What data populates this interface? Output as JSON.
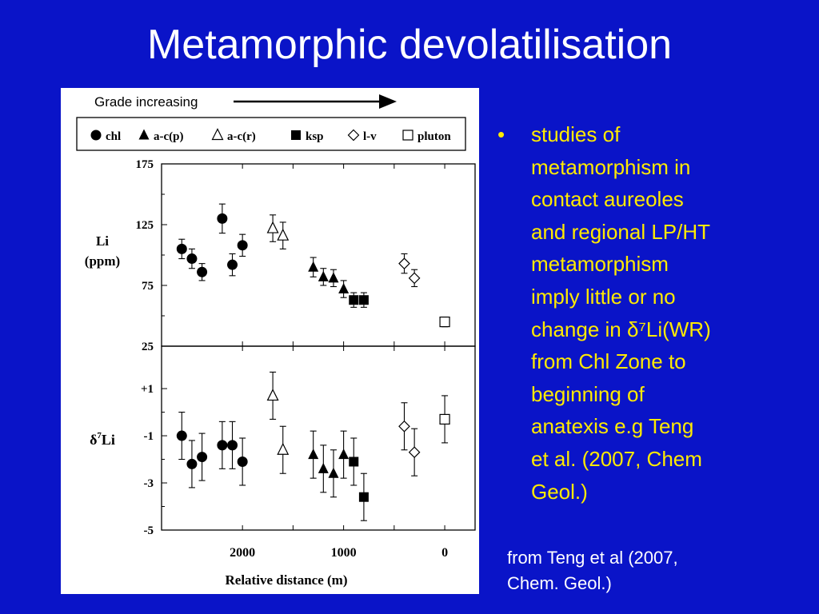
{
  "slide": {
    "title": "Metamorphic devolatilisation",
    "bullet_marker": "•",
    "bullet_text": "studies  of\nmetamorphism in\ncontact aureoles\nand regional LP/HT\nmetamorphism\nimply little  or  no\nchange  in δ⁷Li(WR)\nfrom Chl Zone to\nbeginning  of\nanatexis e.g Teng\net al. (2007, Chem\nGeol.)",
    "source": "from Teng et al (2007,\nChem. Geol.)"
  },
  "colors": {
    "background": "#0a14c8",
    "title": "#ffffff",
    "bullet": "#ffea00",
    "source": "#ffffff"
  },
  "chart_data": {
    "type": "scatter",
    "annotation": "Grade increasing",
    "arrow_direction": "right",
    "legend": [
      {
        "label": "chl",
        "marker": "filled-circle"
      },
      {
        "label": "a-c(p)",
        "marker": "filled-triangle"
      },
      {
        "label": "a-c(r)",
        "marker": "open-triangle"
      },
      {
        "label": "ksp",
        "marker": "filled-square"
      },
      {
        "label": "l-v",
        "marker": "open-diamond"
      },
      {
        "label": "pluton",
        "marker": "open-square"
      }
    ],
    "legend_placement": "top",
    "x_axis": {
      "label": "Relative distance (m)",
      "ticks": [
        "2000",
        "1000",
        "0"
      ],
      "reversed": true,
      "range": [
        2800,
        -300
      ]
    },
    "panels": [
      {
        "name": "Li",
        "ylabel": "Li",
        "yunit": "(ppm)",
        "ylim": [
          25,
          175
        ],
        "ticks": [
          "175",
          "125",
          "75",
          "25"
        ],
        "series": [
          {
            "name": "chl",
            "points": [
              {
                "x": 2600,
                "y": 105,
                "err": 8
              },
              {
                "x": 2500,
                "y": 97,
                "err": 8
              },
              {
                "x": 2400,
                "y": 86,
                "err": 7
              },
              {
                "x": 2200,
                "y": 130,
                "err": 12
              },
              {
                "x": 2100,
                "y": 92,
                "err": 9
              },
              {
                "x": 2000,
                "y": 108,
                "err": 9
              }
            ]
          },
          {
            "name": "a-c(p)",
            "points": [
              {
                "x": 1300,
                "y": 90,
                "err": 8
              },
              {
                "x": 1200,
                "y": 82,
                "err": 7
              },
              {
                "x": 1100,
                "y": 81,
                "err": 7
              },
              {
                "x": 1000,
                "y": 72,
                "err": 7
              }
            ]
          },
          {
            "name": "a-c(r)",
            "points": [
              {
                "x": 1700,
                "y": 122,
                "err": 11
              },
              {
                "x": 1600,
                "y": 116,
                "err": 11
              }
            ]
          },
          {
            "name": "ksp",
            "points": [
              {
                "x": 900,
                "y": 63,
                "err": 6
              },
              {
                "x": 800,
                "y": 63,
                "err": 6
              }
            ]
          },
          {
            "name": "l-v",
            "points": [
              {
                "x": 400,
                "y": 93,
                "err": 8
              },
              {
                "x": 300,
                "y": 81,
                "err": 7
              }
            ]
          },
          {
            "name": "pluton",
            "points": [
              {
                "x": 0,
                "y": 45,
                "err": 4
              }
            ]
          }
        ]
      },
      {
        "name": "d7Li",
        "ylabel": "δ7Li",
        "ylim": [
          -5,
          2.8
        ],
        "ticks": [
          "+1",
          "-1",
          "-3",
          "-5"
        ],
        "series": [
          {
            "name": "chl",
            "points": [
              {
                "x": 2600,
                "y": -1.0,
                "err": 1.0
              },
              {
                "x": 2500,
                "y": -2.2,
                "err": 1.0
              },
              {
                "x": 2400,
                "y": -1.9,
                "err": 1.0
              },
              {
                "x": 2200,
                "y": -1.4,
                "err": 1.0
              },
              {
                "x": 2100,
                "y": -1.4,
                "err": 1.0
              },
              {
                "x": 2000,
                "y": -2.1,
                "err": 1.0
              }
            ]
          },
          {
            "name": "a-c(p)",
            "points": [
              {
                "x": 1300,
                "y": -1.8,
                "err": 1.0
              },
              {
                "x": 1200,
                "y": -2.4,
                "err": 1.0
              },
              {
                "x": 1100,
                "y": -2.6,
                "err": 1.0
              },
              {
                "x": 1000,
                "y": -1.8,
                "err": 1.0
              }
            ]
          },
          {
            "name": "a-c(r)",
            "points": [
              {
                "x": 1700,
                "y": 0.7,
                "err": 1.0
              },
              {
                "x": 1600,
                "y": -1.6,
                "err": 1.0
              }
            ]
          },
          {
            "name": "ksp",
            "points": [
              {
                "x": 900,
                "y": -2.1,
                "err": 1.0
              },
              {
                "x": 800,
                "y": -3.6,
                "err": 1.0
              }
            ]
          },
          {
            "name": "l-v",
            "points": [
              {
                "x": 400,
                "y": -0.6,
                "err": 1.0
              },
              {
                "x": 300,
                "y": -1.7,
                "err": 1.0
              }
            ]
          },
          {
            "name": "pluton",
            "points": [
              {
                "x": 0,
                "y": -0.3,
                "err": 1.0
              }
            ]
          }
        ]
      }
    ]
  }
}
